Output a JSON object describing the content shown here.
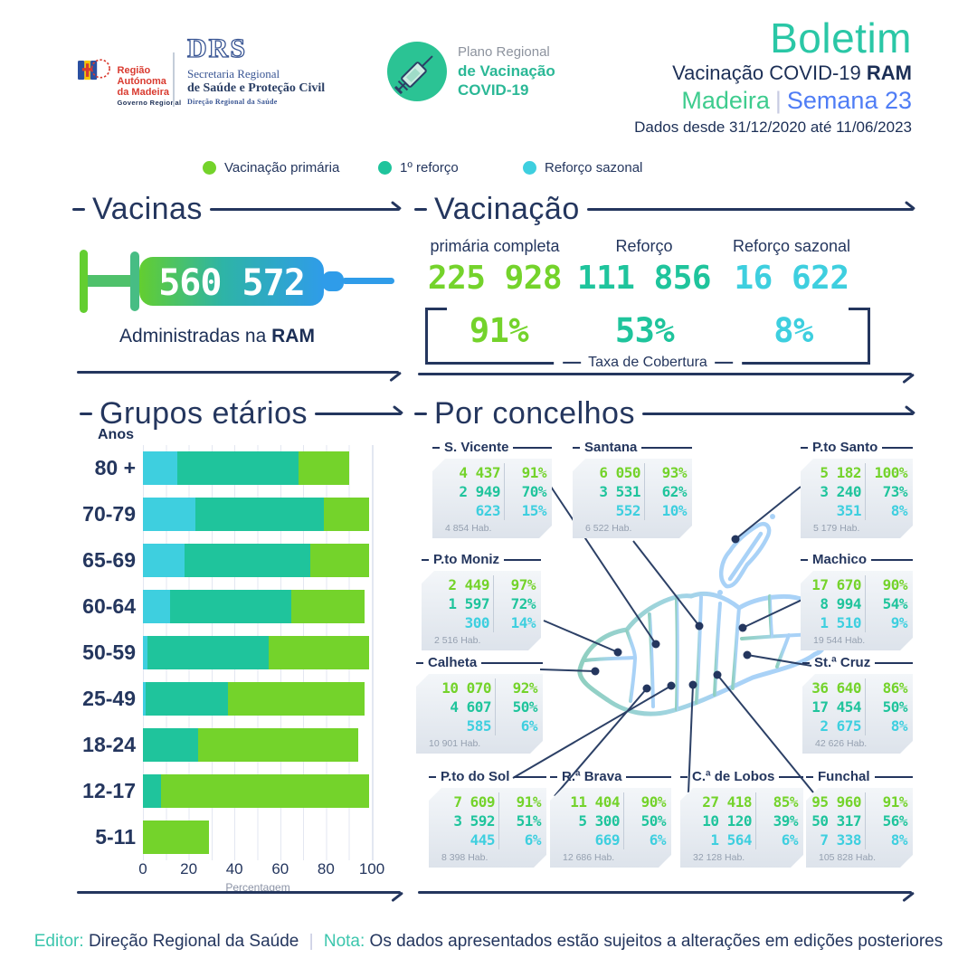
{
  "colors": {
    "navy": "#24365E",
    "dark_navy": "#1C2F56",
    "mint": "#2AC7A6",
    "green": "#74D32B",
    "teal": "#1FC49C",
    "cyan": "#3ECFDF",
    "blue": "#4F7DF5",
    "red": "#D93B30",
    "gray": "#8D96A8",
    "map_blue": "#A9D2F7",
    "map_green": "#8FCFC0"
  },
  "header": {
    "ram_logo": {
      "region_line1": "Região Autónoma",
      "region_line2": "da Madeira",
      "gov": "Governo Regional"
    },
    "drs_logo": {
      "acronym": "DRS",
      "line1": "Secretaria Regional",
      "line2": "de Saúde e Proteção Civil",
      "line3": "Direção Regional da Saúde"
    },
    "plano_logo": {
      "line1": "Plano Regional",
      "line2": "de Vacinação",
      "line3": "COVID-19"
    },
    "title": "Boletim",
    "subtitle": "Vacinação COVID-19",
    "subtitle_bold": "RAM",
    "region": "Madeira",
    "separator": "|",
    "week": "Semana 23",
    "period": "Dados desde 31/12/2020 até 11/06/2023"
  },
  "legend": {
    "items": [
      {
        "label": "Vacinação primária",
        "color": "#74D32B"
      },
      {
        "label": "1º reforço",
        "color": "#1FC49C"
      },
      {
        "label": "Reforço sazonal",
        "color": "#3ECFDF"
      }
    ]
  },
  "vacinas": {
    "title": "Vacinas",
    "total": "560 572",
    "caption": "Administradas na",
    "caption_bold": "RAM"
  },
  "vacinacao": {
    "title": "Vacinação",
    "coverage_label": "Taxa de Cobertura",
    "columns": [
      {
        "label": "primária completa",
        "value": "225 928",
        "pct": "91%",
        "color": "#74D32B"
      },
      {
        "label": "Reforço",
        "value": "111 856",
        "pct": "53%",
        "color": "#1FC49C"
      },
      {
        "label": "Reforço sazonal",
        "value": "16 622",
        "pct": "8%",
        "color": "#3ECFDF"
      }
    ]
  },
  "age_section": {
    "title": "Grupos etários",
    "unit_label": "Anos",
    "axis_label": "Percentagem"
  },
  "concelhos": {
    "title": "Por concelhos",
    "cards": [
      {
        "id": "sv",
        "name": "S. Vicente",
        "rows": [
          [
            "4 437",
            "91%"
          ],
          [
            "2 949",
            "70%"
          ],
          [
            "623",
            "15%"
          ]
        ],
        "hab": "4 854 Hab."
      },
      {
        "id": "santana",
        "name": "Santana",
        "rows": [
          [
            "6 050",
            "93%"
          ],
          [
            "3 531",
            "62%"
          ],
          [
            "552",
            "10%"
          ]
        ],
        "hab": "6 522 Hab."
      },
      {
        "id": "psanto",
        "name": "P.to Santo",
        "rows": [
          [
            "5 182",
            "100%"
          ],
          [
            "3 240",
            "73%"
          ],
          [
            "351",
            "8%"
          ]
        ],
        "hab": "5 179 Hab."
      },
      {
        "id": "pmoniz",
        "name": "P.to Moniz",
        "rows": [
          [
            "2 449",
            "97%"
          ],
          [
            "1 597",
            "72%"
          ],
          [
            "300",
            "14%"
          ]
        ],
        "hab": "2 516 Hab."
      },
      {
        "id": "machico",
        "name": "Machico",
        "rows": [
          [
            "17 670",
            "90%"
          ],
          [
            "8 994",
            "54%"
          ],
          [
            "1 510",
            "9%"
          ]
        ],
        "hab": "19 544 Hab."
      },
      {
        "id": "calheta",
        "name": "Calheta",
        "rows": [
          [
            "10 070",
            "92%"
          ],
          [
            "4 607",
            "50%"
          ],
          [
            "585",
            "6%"
          ]
        ],
        "hab": "10 901 Hab."
      },
      {
        "id": "scruz",
        "name": "St.ª Cruz",
        "rows": [
          [
            "36 640",
            "86%"
          ],
          [
            "17 454",
            "50%"
          ],
          [
            "2 675",
            "8%"
          ]
        ],
        "hab": "42 626 Hab."
      },
      {
        "id": "psol",
        "name": "P.to do Sol",
        "rows": [
          [
            "7 609",
            "91%"
          ],
          [
            "3 592",
            "51%"
          ],
          [
            "445",
            "6%"
          ]
        ],
        "hab": "8 398 Hab."
      },
      {
        "id": "rbrava",
        "name": "R.ª Brava",
        "rows": [
          [
            "11 404",
            "90%"
          ],
          [
            "5 300",
            "50%"
          ],
          [
            "669",
            "6%"
          ]
        ],
        "hab": "12 686 Hab."
      },
      {
        "id": "clobos",
        "name": "C.ª de Lobos",
        "rows": [
          [
            "27 418",
            "85%"
          ],
          [
            "10 120",
            "39%"
          ],
          [
            "1 564",
            "6%"
          ]
        ],
        "hab": "32 128 Hab."
      },
      {
        "id": "funchal",
        "name": "Funchal",
        "rows": [
          [
            "95 960",
            "91%"
          ],
          [
            "50 317",
            "56%"
          ],
          [
            "7 338",
            "8%"
          ]
        ],
        "hab": "105 828 Hab."
      }
    ]
  },
  "footer": {
    "editor_label": "Editor:",
    "editor_value": "Direção Regional da Saúde",
    "separator": "|",
    "nota_label": "Nota:",
    "nota_value": "Os dados apresentados estão sujeitos a alterações em edições posteriores"
  },
  "chart_data": [
    {
      "type": "bar",
      "orientation": "horizontal",
      "title": "Grupos etários",
      "xlabel": "Percentagem",
      "ylabel": "Anos",
      "xlim": [
        0,
        100
      ],
      "ticks": [
        0,
        20,
        40,
        60,
        80,
        100
      ],
      "grid": true,
      "categories": [
        "80 +",
        "70-79",
        "65-69",
        "60-64",
        "50-59",
        "25-49",
        "18-24",
        "12-17",
        "5-11"
      ],
      "series": [
        {
          "name": "Vacinação primária",
          "color": "#74D32B",
          "values": [
            90,
            99,
            99,
            97,
            99,
            97,
            94,
            99,
            29
          ]
        },
        {
          "name": "1º reforço",
          "color": "#1FC49C",
          "values": [
            68,
            79,
            73,
            65,
            55,
            37,
            24,
            8,
            0
          ]
        },
        {
          "name": "Reforço sazonal",
          "color": "#3ECFDF",
          "values": [
            15,
            23,
            18,
            12,
            2,
            1,
            0,
            0,
            0
          ]
        }
      ],
      "note": "bars overlap from 0; values are coverage percentages per age group"
    },
    {
      "type": "table",
      "title": "Por concelhos",
      "columns": [
        "Concelho",
        "Vacinação primária",
        "%",
        "1º reforço",
        "%",
        "Reforço sazonal",
        "%",
        "Habitantes"
      ],
      "rows": [
        [
          "S. Vicente",
          4437,
          "91%",
          2949,
          "70%",
          623,
          "15%",
          4854
        ],
        [
          "Santana",
          6050,
          "93%",
          3531,
          "62%",
          552,
          "10%",
          6522
        ],
        [
          "P.to Santo",
          5182,
          "100%",
          3240,
          "73%",
          351,
          "8%",
          5179
        ],
        [
          "P.to Moniz",
          2449,
          "97%",
          1597,
          "72%",
          300,
          "14%",
          2516
        ],
        [
          "Machico",
          17670,
          "90%",
          8994,
          "54%",
          1510,
          "9%",
          19544
        ],
        [
          "Calheta",
          10070,
          "92%",
          4607,
          "50%",
          585,
          "6%",
          10901
        ],
        [
          "St.ª Cruz",
          36640,
          "86%",
          17454,
          "50%",
          2675,
          "8%",
          42626
        ],
        [
          "P.to do Sol",
          7609,
          "91%",
          3592,
          "51%",
          445,
          "6%",
          8398
        ],
        [
          "R.ª Brava",
          11404,
          "90%",
          5300,
          "50%",
          669,
          "6%",
          12686
        ],
        [
          "C.ª de Lobos",
          27418,
          "85%",
          10120,
          "39%",
          1564,
          "6%",
          32128
        ],
        [
          "Funchal",
          95960,
          "91%",
          50317,
          "56%",
          7338,
          "8%",
          105828
        ]
      ]
    },
    {
      "type": "summary",
      "title": "Vacinação RAM",
      "total_doses": 560572,
      "metrics": [
        {
          "label": "primária completa",
          "count": 225928,
          "coverage_pct": 91
        },
        {
          "label": "Reforço",
          "count": 111856,
          "coverage_pct": 53
        },
        {
          "label": "Reforço sazonal",
          "count": 16622,
          "coverage_pct": 8
        }
      ]
    }
  ]
}
